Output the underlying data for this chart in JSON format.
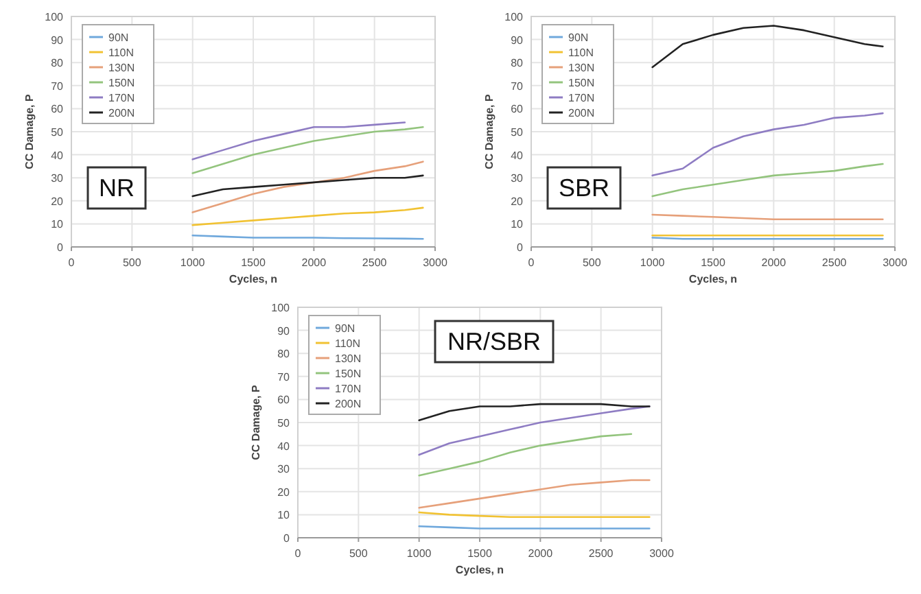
{
  "chart_data": [
    {
      "type": "line",
      "xlabel": "Cycles, n",
      "ylabel": "CC Damage, P",
      "annotations": [
        "NR"
      ],
      "x": [
        1000,
        1250,
        1500,
        1750,
        2000,
        2250,
        2500,
        2750,
        2900
      ],
      "xlim": [
        0,
        3000
      ],
      "xticks": [
        0,
        500,
        1000,
        1500,
        2000,
        2500,
        3000
      ],
      "ylim": [
        0,
        100
      ],
      "yticks": [
        0,
        10,
        20,
        30,
        40,
        50,
        60,
        70,
        80,
        90,
        100
      ],
      "grid": true,
      "legend": "top left",
      "series": [
        {
          "name": "90N",
          "color": "#6fa8dc",
          "values": [
            5,
            4.5,
            4,
            4,
            4,
            3.8,
            3.7,
            3.6,
            3.5
          ]
        },
        {
          "name": "110N",
          "color": "#f1c232",
          "values": [
            9.5,
            10.5,
            11.5,
            12.5,
            13.5,
            14.5,
            15,
            16,
            17
          ]
        },
        {
          "name": "130N",
          "color": "#e6a07a",
          "values": [
            15,
            19,
            23,
            26,
            28,
            30,
            33,
            35,
            37
          ]
        },
        {
          "name": "150N",
          "color": "#93c47d",
          "values": [
            32,
            36,
            40,
            43,
            46,
            48,
            50,
            51,
            52
          ]
        },
        {
          "name": "170N",
          "color": "#8e7cc3",
          "values": [
            38,
            42,
            46,
            49,
            52,
            52,
            53,
            54,
            null
          ]
        },
        {
          "name": "200N",
          "color": "#222222",
          "values": [
            22,
            25,
            26,
            27,
            28,
            29,
            30,
            30,
            31
          ]
        }
      ]
    },
    {
      "type": "line",
      "xlabel": "Cycles, n",
      "ylabel": "CC Damage, P",
      "annotations": [
        "SBR"
      ],
      "x": [
        1000,
        1250,
        1500,
        1750,
        2000,
        2250,
        2500,
        2750,
        2900
      ],
      "xlim": [
        0,
        3000
      ],
      "xticks": [
        0,
        500,
        1000,
        1500,
        2000,
        2500,
        3000
      ],
      "ylim": [
        0,
        100
      ],
      "yticks": [
        0,
        10,
        20,
        30,
        40,
        50,
        60,
        70,
        80,
        90,
        100
      ],
      "grid": true,
      "legend": "top left",
      "series": [
        {
          "name": "90N",
          "color": "#6fa8dc",
          "values": [
            4,
            3.5,
            3.5,
            3.5,
            3.5,
            3.5,
            3.5,
            3.5,
            3.5
          ]
        },
        {
          "name": "110N",
          "color": "#f1c232",
          "values": [
            5,
            5,
            5,
            5,
            5,
            5,
            5,
            5,
            5
          ]
        },
        {
          "name": "130N",
          "color": "#e6a07a",
          "values": [
            14,
            13.5,
            13,
            12.5,
            12,
            12,
            12,
            12,
            12
          ]
        },
        {
          "name": "150N",
          "color": "#93c47d",
          "values": [
            22,
            25,
            27,
            29,
            31,
            32,
            33,
            35,
            36
          ]
        },
        {
          "name": "170N",
          "color": "#8e7cc3",
          "values": [
            31,
            34,
            43,
            48,
            51,
            53,
            56,
            57,
            58
          ]
        },
        {
          "name": "200N",
          "color": "#222222",
          "values": [
            78,
            88,
            92,
            95,
            96,
            94,
            91,
            88,
            87
          ]
        }
      ]
    },
    {
      "type": "line",
      "xlabel": "Cycles, n",
      "ylabel": "CC Damage, P",
      "annotations": [
        "NR/SBR"
      ],
      "x": [
        1000,
        1250,
        1500,
        1750,
        2000,
        2250,
        2500,
        2750,
        2900
      ],
      "xlim": [
        0,
        3000
      ],
      "xticks": [
        0,
        500,
        1000,
        1500,
        2000,
        2500,
        3000
      ],
      "ylim": [
        0,
        100
      ],
      "yticks": [
        0,
        10,
        20,
        30,
        40,
        50,
        60,
        70,
        80,
        90,
        100
      ],
      "grid": true,
      "legend": "top left",
      "series": [
        {
          "name": "90N",
          "color": "#6fa8dc",
          "values": [
            5,
            4.5,
            4,
            4,
            4,
            4,
            4,
            4,
            4
          ]
        },
        {
          "name": "110N",
          "color": "#f1c232",
          "values": [
            11,
            10,
            9.5,
            9,
            9,
            9,
            9,
            9,
            9
          ]
        },
        {
          "name": "130N",
          "color": "#e6a07a",
          "values": [
            13,
            15,
            17,
            19,
            21,
            23,
            24,
            25,
            25
          ]
        },
        {
          "name": "150N",
          "color": "#93c47d",
          "values": [
            27,
            30,
            33,
            37,
            40,
            42,
            44,
            45,
            null
          ]
        },
        {
          "name": "170N",
          "color": "#8e7cc3",
          "values": [
            36,
            41,
            44,
            47,
            50,
            52,
            54,
            56,
            57
          ]
        },
        {
          "name": "200N",
          "color": "#222222",
          "values": [
            51,
            55,
            57,
            57,
            58,
            58,
            58,
            57,
            57
          ]
        }
      ]
    }
  ]
}
